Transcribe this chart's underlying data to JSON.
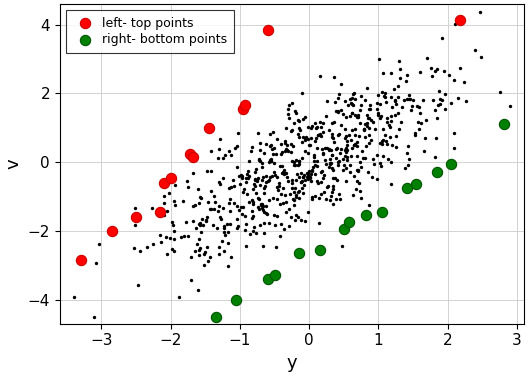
{
  "title": "",
  "xlabel": "y",
  "ylabel": "v",
  "xlim": [
    -3.6,
    3.1
  ],
  "ylim": [
    -4.7,
    4.6
  ],
  "xticks": [
    -3,
    -2,
    -1,
    0,
    1,
    2,
    3
  ],
  "yticks": [
    -4,
    -2,
    0,
    2,
    4
  ],
  "background_color": "#ffffff",
  "grid_color": "#cccccc",
  "random_seed": 7,
  "n_main": 700,
  "slope": 1.0,
  "noise_std": 0.9,
  "x_range_low": -3.0,
  "x_range_high": 3.0,
  "main_color": "#000000",
  "red_points": [
    [
      -3.3,
      -2.85
    ],
    [
      -2.85,
      -2.0
    ],
    [
      -2.5,
      -1.6
    ],
    [
      -2.15,
      -1.45
    ],
    [
      -2.1,
      -0.6
    ],
    [
      -2.0,
      -0.45
    ],
    [
      -1.72,
      0.25
    ],
    [
      -1.68,
      0.15
    ],
    [
      -1.45,
      1.0
    ],
    [
      -0.95,
      1.55
    ],
    [
      -0.92,
      1.65
    ],
    [
      -0.6,
      3.85
    ],
    [
      2.18,
      4.15
    ]
  ],
  "green_points": [
    [
      -1.35,
      -4.5
    ],
    [
      -1.05,
      -4.0
    ],
    [
      -0.6,
      -3.4
    ],
    [
      -0.5,
      -3.3
    ],
    [
      -0.15,
      -2.65
    ],
    [
      0.15,
      -2.55
    ],
    [
      0.5,
      -1.95
    ],
    [
      0.58,
      -1.75
    ],
    [
      0.82,
      -1.55
    ],
    [
      1.05,
      -1.45
    ],
    [
      1.42,
      -0.75
    ],
    [
      1.55,
      -0.65
    ],
    [
      1.85,
      -0.3
    ],
    [
      2.05,
      -0.05
    ],
    [
      2.82,
      1.1
    ]
  ],
  "red_color": "#ff0000",
  "green_color": "#008000",
  "marker_size_colored": 55,
  "marker_size_main": 6,
  "legend_fontsize": 9,
  "tick_fontsize": 11,
  "label_fontsize": 13
}
